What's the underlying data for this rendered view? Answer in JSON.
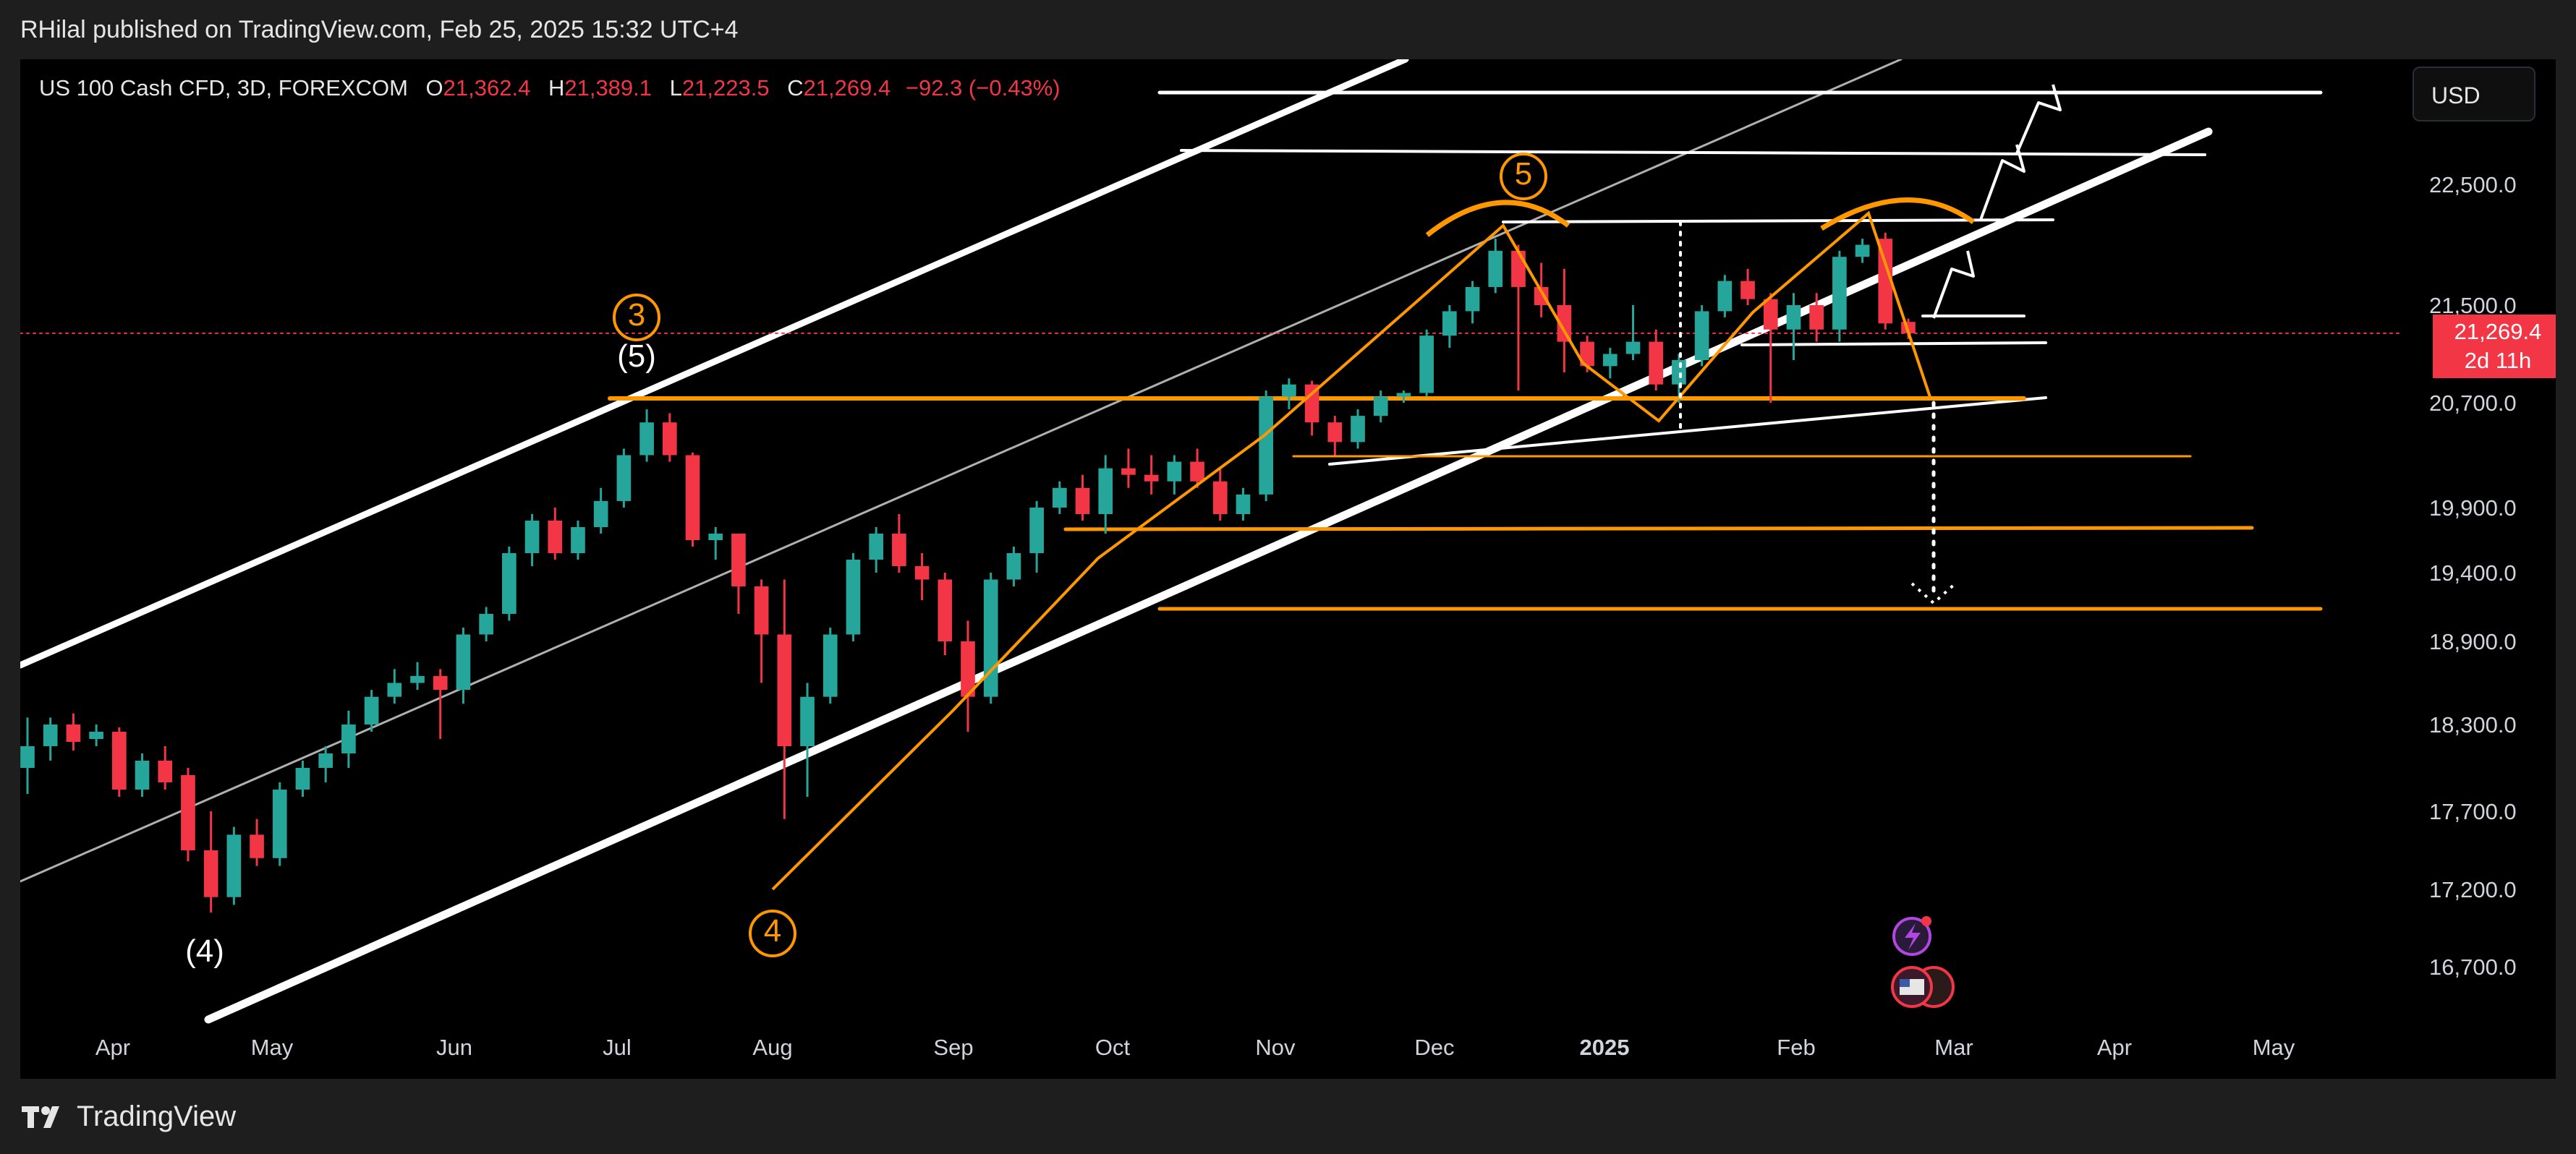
{
  "header": {
    "publisher": "RHilal published on TradingView.com, Feb 25, 2025 15:32 UTC+4"
  },
  "legend": {
    "symbol": "US 100 Cash CFD, 3D, FOREXCOM",
    "open_label": "O",
    "open": "21,362.4",
    "high_label": "H",
    "high": "21,389.1",
    "low_label": "L",
    "low": "21,223.5",
    "close_label": "C",
    "close": "21,269.4",
    "change": "−92.3 (−0.43%)"
  },
  "currency_button": "USD",
  "last_price": {
    "value": "21,269.4",
    "countdown": "2d 11h"
  },
  "footer": {
    "brand": "TradingView"
  },
  "colors": {
    "up": "#26a69a",
    "down": "#f23645",
    "orange": "#ff9800",
    "line": "#ffffff",
    "grey": "#b0b0b0"
  },
  "chart_data": {
    "type": "candlestick",
    "title": "US 100 Cash CFD, 3D, FOREXCOM",
    "x_ticks": [
      "Apr",
      "May",
      "Jun",
      "Jul",
      "Aug",
      "Sep",
      "Oct",
      "Nov",
      "Dec",
      "2025",
      "Feb",
      "Mar",
      "Apr",
      "May"
    ],
    "y_ticks": [
      "22,500.0",
      "21,500.0",
      "20,700.0",
      "19,900.0",
      "19,400.0",
      "18,900.0",
      "18,300.0",
      "17,700.0",
      "17,200.0",
      "16,700.0"
    ],
    "ylim": [
      16400,
      23300
    ],
    "candles_ohlc": [
      [
        18000,
        18350,
        17820,
        18150
      ],
      [
        18150,
        18350,
        18050,
        18300
      ],
      [
        18300,
        18380,
        18120,
        18180
      ],
      [
        18200,
        18300,
        18150,
        18250
      ],
      [
        18250,
        18280,
        17800,
        17850
      ],
      [
        17850,
        18100,
        17800,
        18050
      ],
      [
        18050,
        18150,
        17850,
        17900
      ],
      [
        17950,
        18000,
        17380,
        17450
      ],
      [
        17450,
        17700,
        17050,
        17150
      ],
      [
        17150,
        17600,
        17100,
        17550
      ],
      [
        17550,
        17650,
        17350,
        17400
      ],
      [
        17400,
        17900,
        17350,
        17850
      ],
      [
        17850,
        18050,
        17800,
        18000
      ],
      [
        18000,
        18150,
        17900,
        18100
      ],
      [
        18100,
        18400,
        18000,
        18300
      ],
      [
        18300,
        18550,
        18250,
        18500
      ],
      [
        18500,
        18700,
        18450,
        18600
      ],
      [
        18600,
        18750,
        18550,
        18650
      ],
      [
        18650,
        18700,
        18200,
        18550
      ],
      [
        18550,
        19000,
        18450,
        18950
      ],
      [
        18950,
        19150,
        18900,
        19100
      ],
      [
        19100,
        19600,
        19050,
        19550
      ],
      [
        19550,
        19850,
        19450,
        19800
      ],
      [
        19800,
        19900,
        19500,
        19550
      ],
      [
        19550,
        19800,
        19500,
        19750
      ],
      [
        19750,
        20050,
        19700,
        19950
      ],
      [
        19950,
        20350,
        19900,
        20300
      ],
      [
        20300,
        20650,
        20250,
        20550
      ],
      [
        20550,
        20620,
        20250,
        20300
      ],
      [
        20300,
        20320,
        19600,
        19650
      ],
      [
        19650,
        19750,
        19500,
        19700
      ],
      [
        19700,
        19700,
        19100,
        19300
      ],
      [
        19300,
        19350,
        18600,
        18950
      ],
      [
        18950,
        19350,
        17650,
        18150
      ],
      [
        18150,
        18600,
        17800,
        18500
      ],
      [
        18500,
        19000,
        18450,
        18950
      ],
      [
        18950,
        19550,
        18900,
        19500
      ],
      [
        19500,
        19750,
        19400,
        19700
      ],
      [
        19700,
        19850,
        19400,
        19450
      ],
      [
        19450,
        19550,
        19200,
        19350
      ],
      [
        19350,
        19400,
        18800,
        18900
      ],
      [
        18900,
        19050,
        18250,
        18500
      ],
      [
        18500,
        19400,
        18450,
        19350
      ],
      [
        19350,
        19600,
        19300,
        19550
      ],
      [
        19550,
        19950,
        19400,
        19900
      ],
      [
        19900,
        20100,
        19850,
        20050
      ],
      [
        20050,
        20150,
        19800,
        19850
      ],
      [
        19850,
        20300,
        19700,
        20200
      ],
      [
        20200,
        20350,
        20050,
        20150
      ],
      [
        20150,
        20300,
        20000,
        20100
      ],
      [
        20100,
        20300,
        20000,
        20250
      ],
      [
        20250,
        20350,
        20050,
        20100
      ],
      [
        20100,
        20200,
        19800,
        19850
      ],
      [
        19850,
        20050,
        19800,
        20000
      ],
      [
        20000,
        20800,
        19950,
        20750
      ],
      [
        20750,
        20900,
        20650,
        20850
      ],
      [
        20850,
        20880,
        20450,
        20550
      ],
      [
        20550,
        20600,
        20300,
        20400
      ],
      [
        20400,
        20650,
        20350,
        20600
      ],
      [
        20600,
        20800,
        20550,
        20750
      ],
      [
        20750,
        20800,
        20700,
        20780
      ],
      [
        20780,
        21300,
        20750,
        21250
      ],
      [
        21250,
        21500,
        21150,
        21450
      ],
      [
        21450,
        21700,
        21350,
        21650
      ],
      [
        21650,
        22050,
        21600,
        21950
      ],
      [
        21950,
        22000,
        20800,
        21650
      ],
      [
        21650,
        21850,
        21400,
        21500
      ],
      [
        21500,
        21800,
        20950,
        21200
      ],
      [
        21200,
        21250,
        20950,
        21000
      ],
      [
        21000,
        21150,
        20900,
        21100
      ],
      [
        21100,
        21500,
        21050,
        21200
      ],
      [
        21200,
        21300,
        20800,
        20850
      ],
      [
        20850,
        21100,
        20700,
        21050
      ],
      [
        21050,
        21500,
        21000,
        21450
      ],
      [
        21450,
        21750,
        21400,
        21700
      ],
      [
        21700,
        21800,
        21500,
        21550
      ],
      [
        21550,
        21600,
        20700,
        21300
      ],
      [
        21300,
        21600,
        21050,
        21500
      ],
      [
        21500,
        21600,
        21200,
        21300
      ],
      [
        21300,
        21950,
        21200,
        21900
      ],
      [
        21900,
        22050,
        21850,
        22000
      ],
      [
        22050,
        22100,
        21300,
        21350
      ],
      [
        21362.4,
        21389.1,
        21223.5,
        21269.4
      ]
    ],
    "last_close": 21269.4,
    "annotations": {
      "wave_counts": [
        "(4)",
        "3",
        "(5)",
        "4",
        "5"
      ]
    }
  }
}
